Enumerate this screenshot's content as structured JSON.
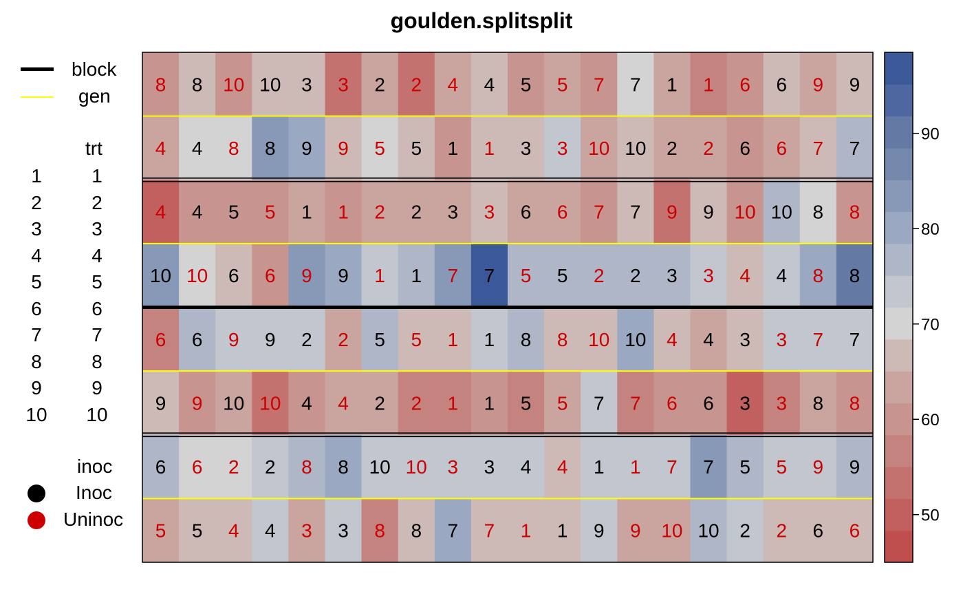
{
  "title": "goulden.splitsplit",
  "legend": {
    "lines": [
      {
        "label": "block",
        "color": "#000000"
      },
      {
        "label": "gen",
        "color": "#ffff00"
      }
    ],
    "trt_header": "trt",
    "trt_levels": [
      "1",
      "2",
      "3",
      "4",
      "5",
      "6",
      "7",
      "8",
      "9",
      "10"
    ],
    "inoc_header": "inoc",
    "inoc_levels": [
      {
        "label": "Inoc",
        "color": "#000000"
      },
      {
        "label": "Uninoc",
        "color": "#cc0000"
      }
    ]
  },
  "colorbar": {
    "ticks": [
      50,
      60,
      70,
      80,
      90
    ],
    "range": [
      45,
      98.5
    ],
    "colors": [
      "#bf4f4f",
      "#c2605f",
      "#c4726f",
      "#c5837f",
      "#c7948f",
      "#caa5a0",
      "#cdbab6",
      "#d3d3d3",
      "#c1c6cf",
      "#aeb6c8",
      "#9ba8c1",
      "#8899b8",
      "#7589ad",
      "#647aa5",
      "#4e67a0",
      "#3b5998"
    ]
  },
  "colors": {
    "inoc_text": "#000000",
    "uninoc_text": "#cc0000",
    "block_line": "#000000",
    "gen_line": "#ffff00"
  },
  "chart_data": {
    "type": "heatmap",
    "title": "goulden.splitsplit",
    "ncols": 20,
    "nrows": 8,
    "block_boundaries_after_row": [
      2,
      4,
      6
    ],
    "gen_boundaries_after_row": [
      1,
      3,
      5,
      7
    ],
    "rows": [
      {
        "labels": [
          8,
          8,
          10,
          10,
          3,
          3,
          2,
          2,
          4,
          4,
          5,
          5,
          7,
          7,
          1,
          1,
          6,
          6,
          9,
          9
        ],
        "inoc": [
          0,
          1,
          0,
          1,
          1,
          0,
          1,
          0,
          0,
          1,
          1,
          0,
          0,
          1,
          1,
          0,
          0,
          1,
          0,
          1
        ],
        "values": [
          61,
          67,
          59,
          67,
          67,
          53,
          63,
          55,
          63,
          67,
          61,
          62,
          59,
          71,
          62,
          56,
          59,
          67,
          62,
          67
        ]
      },
      {
        "labels": [
          4,
          4,
          8,
          8,
          9,
          9,
          5,
          5,
          1,
          1,
          3,
          3,
          10,
          10,
          2,
          2,
          6,
          6,
          7,
          7
        ],
        "inoc": [
          0,
          1,
          0,
          1,
          1,
          0,
          0,
          1,
          1,
          0,
          1,
          0,
          0,
          1,
          1,
          0,
          1,
          0,
          0,
          1
        ],
        "values": [
          63,
          71,
          71,
          83,
          80,
          67,
          70,
          67,
          61,
          67,
          67,
          73,
          63,
          67,
          63,
          62,
          59,
          63,
          67,
          76
        ]
      },
      {
        "labels": [
          4,
          4,
          5,
          5,
          1,
          1,
          2,
          2,
          3,
          3,
          6,
          6,
          7,
          7,
          9,
          9,
          10,
          10,
          8,
          8
        ],
        "inoc": [
          0,
          1,
          1,
          0,
          1,
          0,
          0,
          1,
          1,
          0,
          1,
          0,
          0,
          1,
          0,
          1,
          0,
          1,
          1,
          0
        ],
        "values": [
          51,
          61,
          61,
          60,
          63,
          61,
          62,
          63,
          63,
          67,
          63,
          62,
          59,
          67,
          55,
          67,
          61,
          76,
          71,
          59
        ]
      },
      {
        "labels": [
          10,
          10,
          6,
          6,
          9,
          9,
          1,
          1,
          7,
          7,
          5,
          5,
          2,
          2,
          3,
          3,
          4,
          4,
          8,
          8
        ],
        "inoc": [
          1,
          0,
          1,
          0,
          0,
          1,
          0,
          1,
          0,
          1,
          0,
          1,
          0,
          1,
          1,
          0,
          0,
          1,
          0,
          1
        ],
        "values": [
          82,
          71,
          67,
          61,
          84,
          79,
          72,
          77,
          84,
          97,
          76,
          77,
          76,
          77,
          77,
          73,
          67,
          73,
          81,
          89
        ]
      },
      {
        "labels": [
          6,
          6,
          9,
          9,
          2,
          2,
          5,
          5,
          1,
          1,
          8,
          8,
          10,
          10,
          4,
          4,
          3,
          3,
          7,
          7
        ],
        "inoc": [
          0,
          1,
          0,
          1,
          1,
          0,
          1,
          0,
          0,
          1,
          1,
          0,
          0,
          1,
          0,
          1,
          1,
          0,
          0,
          1
        ],
        "values": [
          57,
          76,
          72,
          72,
          72,
          63,
          78,
          67,
          67,
          72,
          77,
          67,
          67,
          80,
          67,
          63,
          67,
          74,
          72,
          74
        ]
      },
      {
        "labels": [
          9,
          9,
          10,
          10,
          4,
          4,
          2,
          2,
          1,
          1,
          5,
          5,
          7,
          7,
          6,
          6,
          3,
          3,
          8,
          8
        ],
        "inoc": [
          1,
          0,
          1,
          0,
          1,
          0,
          1,
          0,
          0,
          1,
          1,
          0,
          1,
          0,
          0,
          1,
          1,
          0,
          1,
          0
        ],
        "values": [
          67,
          61,
          63,
          52,
          61,
          62,
          62,
          58,
          57,
          61,
          58,
          62,
          72,
          57,
          60,
          61,
          50,
          57,
          62,
          60
        ]
      },
      {
        "labels": [
          6,
          6,
          2,
          2,
          8,
          8,
          10,
          10,
          3,
          3,
          4,
          4,
          1,
          1,
          7,
          7,
          5,
          5,
          9,
          9
        ],
        "inoc": [
          1,
          0,
          0,
          1,
          0,
          1,
          1,
          0,
          0,
          1,
          1,
          0,
          1,
          0,
          0,
          1,
          1,
          0,
          0,
          1
        ],
        "values": [
          78,
          70,
          70,
          72,
          76,
          81,
          73,
          73,
          73,
          73,
          73,
          67,
          72,
          72,
          73,
          83,
          76,
          73,
          73,
          78
        ]
      },
      {
        "labels": [
          5,
          5,
          4,
          4,
          3,
          3,
          8,
          8,
          7,
          7,
          1,
          1,
          9,
          9,
          10,
          10,
          2,
          2,
          6,
          6
        ],
        "inoc": [
          0,
          1,
          0,
          1,
          0,
          1,
          0,
          1,
          1,
          0,
          0,
          1,
          1,
          0,
          0,
          1,
          1,
          0,
          1,
          0
        ],
        "values": [
          63,
          67,
          67,
          72,
          63,
          72,
          57,
          67,
          80,
          67,
          67,
          67,
          72,
          63,
          63,
          78,
          72,
          67,
          67,
          67
        ]
      }
    ]
  }
}
